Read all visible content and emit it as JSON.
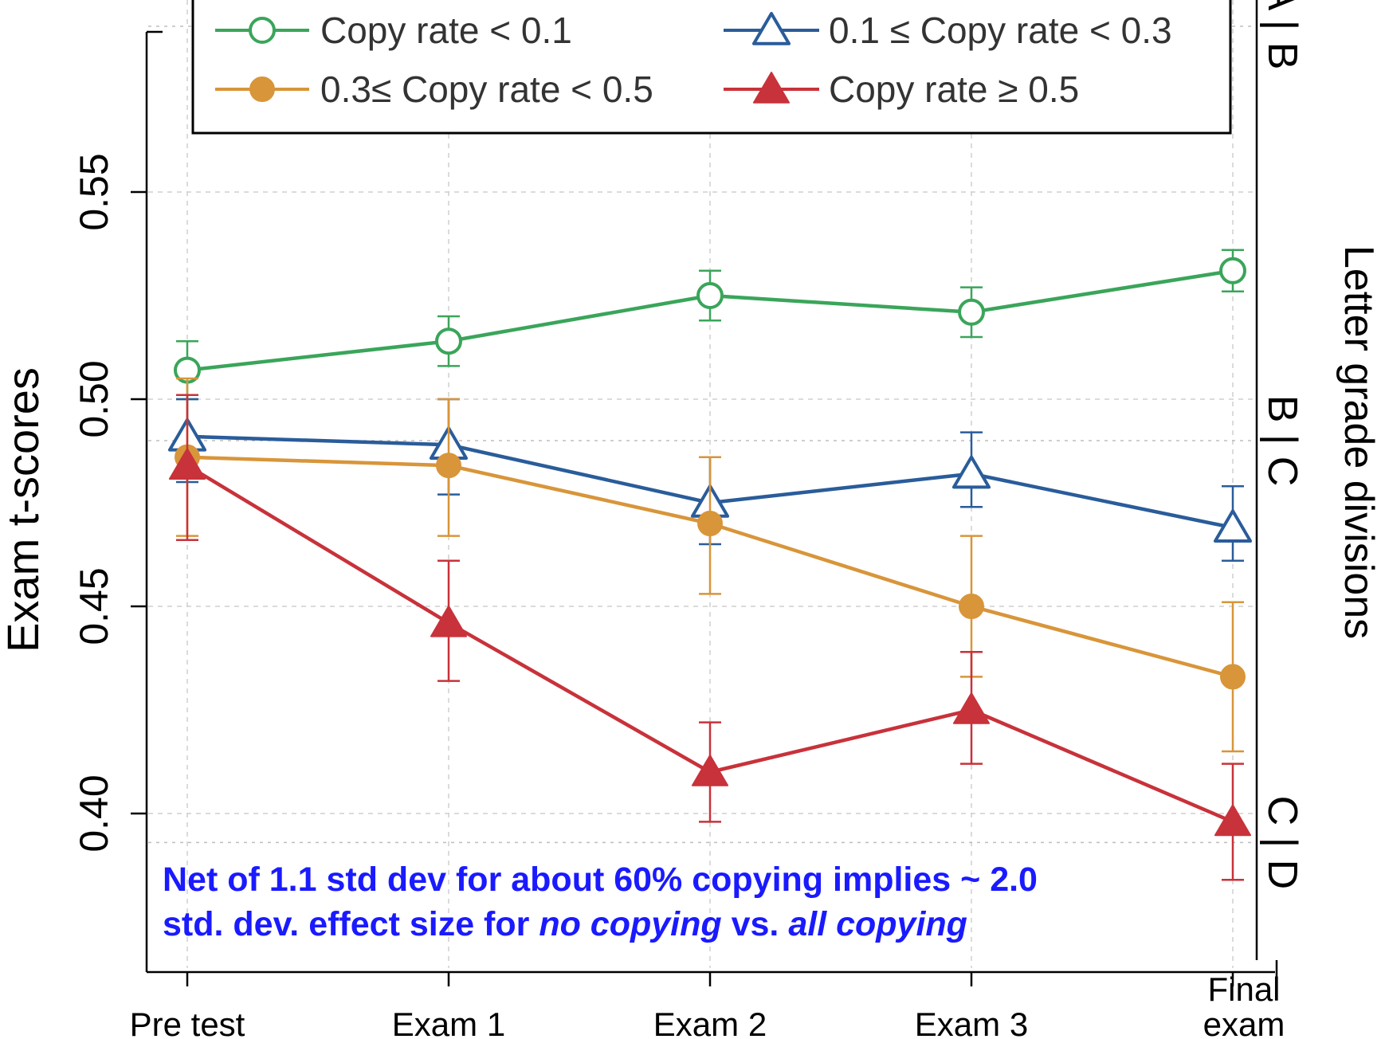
{
  "chart_data": {
    "type": "line",
    "title": "",
    "xlabel": "",
    "ylabel": "Exam t-scores",
    "right_ylabel": "Letter grade divisions",
    "categories": [
      "Pre test",
      "Exam 1",
      "Exam 2",
      "Exam 3",
      "Final exam"
    ],
    "ylim": [
      0.36,
      0.595
    ],
    "yticks": [
      {
        "value": 0.4,
        "label": "0.40"
      },
      {
        "value": 0.45,
        "label": "0.45"
      },
      {
        "value": 0.5,
        "label": "0.50"
      },
      {
        "value": 0.55,
        "label": "0.55"
      }
    ],
    "grid": true,
    "legend_position": "top",
    "series": [
      {
        "name": "Copy rate < 0.1",
        "color": "#3aa55a",
        "marker": "circle-open",
        "values": [
          0.507,
          0.514,
          0.525,
          0.521,
          0.531
        ],
        "err_low": [
          0.5,
          0.508,
          0.519,
          0.515,
          0.526
        ],
        "err_high": [
          0.514,
          0.52,
          0.531,
          0.527,
          0.536
        ]
      },
      {
        "name": "0.1 ≤ Copy rate < 0.3",
        "color": "#2a5c9a",
        "marker": "triangle-open",
        "values": [
          0.491,
          0.489,
          0.475,
          0.482,
          0.469
        ],
        "err_low": [
          0.48,
          0.477,
          0.465,
          0.474,
          0.461
        ],
        "err_high": [
          0.5,
          0.5,
          0.486,
          0.492,
          0.479
        ]
      },
      {
        "name": "0.3≤ Copy rate < 0.5",
        "color": "#d8953a",
        "marker": "circle-filled",
        "values": [
          0.486,
          0.484,
          0.47,
          0.45,
          0.433
        ],
        "err_low": [
          0.467,
          0.467,
          0.453,
          0.433,
          0.415
        ],
        "err_high": [
          0.505,
          0.5,
          0.486,
          0.467,
          0.451
        ]
      },
      {
        "name": "Copy rate ≥ 0.5",
        "color": "#c8323a",
        "marker": "triangle-filled",
        "values": [
          0.484,
          0.446,
          0.41,
          0.425,
          0.398
        ],
        "err_low": [
          0.466,
          0.432,
          0.398,
          0.412,
          0.384
        ],
        "err_high": [
          0.501,
          0.461,
          0.422,
          0.439,
          0.412
        ]
      }
    ],
    "grade_divisions": [
      {
        "value": 0.59,
        "label": "A | B"
      },
      {
        "value": 0.49,
        "label": "B | C"
      },
      {
        "value": 0.393,
        "label": "C | D"
      }
    ],
    "annotation": {
      "line1": "Net of 1.1 std dev for about 60% copying implies ~ 2.0",
      "line2_start": "std. dev. effect size for ",
      "line2_italic1": "no copying",
      "line2_mid": " vs. ",
      "line2_italic2": "all copying"
    }
  }
}
